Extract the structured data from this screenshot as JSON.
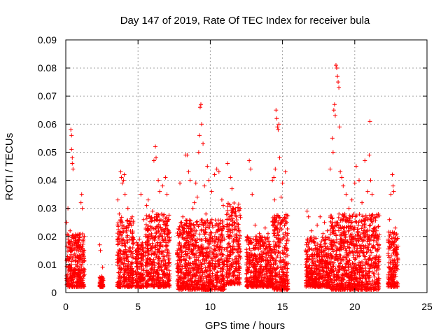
{
  "chart_data": {
    "type": "scatter",
    "title": "Day 147 of 2019, Rate Of TEC Index for receiver bula",
    "xlabel": "GPS time / hours",
    "ylabel": "ROTI / TECUs",
    "xlim": [
      0,
      25
    ],
    "ylim": [
      0,
      0.09
    ],
    "x_ticks": [
      "0",
      "5",
      "10",
      "15",
      "20",
      "25"
    ],
    "y_ticks": [
      "0",
      "0.01",
      "0.02",
      "0.03",
      "0.04",
      "0.05",
      "0.06",
      "0.07",
      "0.08",
      "0.09"
    ],
    "grid": true,
    "marker": "+",
    "color": "#ff0000",
    "series": [
      {
        "points": [
          [
            0.05,
            0.025
          ],
          [
            0.1,
            0.012
          ],
          [
            0.15,
            0.03
          ],
          [
            0.2,
            0.018
          ],
          [
            0.25,
            0.008
          ],
          [
            0.3,
            0.022
          ],
          [
            0.35,
            0.058
          ],
          [
            0.4,
            0.056
          ],
          [
            0.4,
            0.051
          ],
          [
            0.45,
            0.048
          ],
          [
            0.45,
            0.046
          ],
          [
            0.5,
            0.044
          ],
          [
            0.55,
            0.013
          ],
          [
            0.6,
            0.02
          ],
          [
            0.7,
            0.01
          ],
          [
            0.8,
            0.016
          ],
          [
            0.9,
            0.008
          ],
          [
            1.0,
            0.012
          ],
          [
            1.05,
            0.032
          ],
          [
            1.1,
            0.035
          ],
          [
            1.15,
            0.03
          ],
          [
            1.2,
            0.018
          ],
          [
            1.25,
            0.006
          ],
          [
            2.35,
            0.017
          ],
          [
            2.4,
            0.015
          ],
          [
            2.45,
            0.005
          ],
          [
            2.5,
            0.003
          ],
          [
            2.55,
            0.009
          ],
          [
            3.6,
            0.033
          ],
          [
            3.7,
            0.028
          ],
          [
            3.8,
            0.043
          ],
          [
            3.85,
            0.041
          ],
          [
            3.9,
            0.039
          ],
          [
            4.0,
            0.04
          ],
          [
            4.05,
            0.042
          ],
          [
            4.1,
            0.035
          ],
          [
            4.2,
            0.022
          ],
          [
            4.3,
            0.03
          ],
          [
            4.4,
            0.016
          ],
          [
            4.6,
            0.027
          ],
          [
            4.9,
            0.015
          ],
          [
            5.1,
            0.019
          ],
          [
            5.2,
            0.035
          ],
          [
            5.4,
            0.026
          ],
          [
            5.6,
            0.031
          ],
          [
            5.7,
            0.033
          ],
          [
            5.9,
            0.02
          ],
          [
            6.0,
            0.029
          ],
          [
            6.1,
            0.047
          ],
          [
            6.2,
            0.052
          ],
          [
            6.25,
            0.048
          ],
          [
            6.4,
            0.04
          ],
          [
            6.5,
            0.036
          ],
          [
            6.7,
            0.038
          ],
          [
            6.9,
            0.041
          ],
          [
            7.0,
            0.035
          ],
          [
            7.1,
            0.022
          ],
          [
            7.9,
            0.039
          ],
          [
            8.1,
            0.027
          ],
          [
            8.3,
            0.049
          ],
          [
            8.4,
            0.049
          ],
          [
            8.5,
            0.043
          ],
          [
            8.6,
            0.04
          ],
          [
            8.8,
            0.03
          ],
          [
            8.9,
            0.032
          ],
          [
            9.0,
            0.039
          ],
          [
            9.1,
            0.034
          ],
          [
            9.2,
            0.05
          ],
          [
            9.25,
            0.056
          ],
          [
            9.3,
            0.066
          ],
          [
            9.35,
            0.067
          ],
          [
            9.4,
            0.06
          ],
          [
            9.5,
            0.053
          ],
          [
            9.6,
            0.038
          ],
          [
            9.7,
            0.028
          ],
          [
            9.8,
            0.045
          ],
          [
            9.9,
            0.04
          ],
          [
            10.1,
            0.036
          ],
          [
            10.3,
            0.042
          ],
          [
            10.45,
            0.044
          ],
          [
            10.6,
            0.043
          ],
          [
            10.8,
            0.033
          ],
          [
            10.9,
            0.031
          ],
          [
            11.2,
            0.046
          ],
          [
            11.4,
            0.041
          ],
          [
            11.5,
            0.037
          ],
          [
            11.6,
            0.03
          ],
          [
            11.8,
            0.027
          ],
          [
            12.0,
            0.022
          ],
          [
            12.7,
            0.047
          ],
          [
            12.8,
            0.044
          ],
          [
            12.9,
            0.035
          ],
          [
            13.1,
            0.024
          ],
          [
            13.4,
            0.021
          ],
          [
            13.6,
            0.018
          ],
          [
            13.8,
            0.023
          ],
          [
            14.0,
            0.021
          ],
          [
            14.3,
            0.04
          ],
          [
            14.4,
            0.041
          ],
          [
            14.45,
            0.033
          ],
          [
            14.5,
            0.044
          ],
          [
            14.55,
            0.065
          ],
          [
            14.6,
            0.062
          ],
          [
            14.65,
            0.059
          ],
          [
            14.7,
            0.058
          ],
          [
            14.75,
            0.06
          ],
          [
            14.8,
            0.048
          ],
          [
            14.9,
            0.034
          ],
          [
            15.0,
            0.039
          ],
          [
            15.2,
            0.043
          ],
          [
            15.3,
            0.025
          ],
          [
            16.7,
            0.029
          ],
          [
            16.8,
            0.027
          ],
          [
            17.0,
            0.022
          ],
          [
            17.2,
            0.018
          ],
          [
            17.4,
            0.024
          ],
          [
            17.6,
            0.027
          ],
          [
            17.8,
            0.021
          ],
          [
            17.9,
            0.025
          ],
          [
            18.1,
            0.022
          ],
          [
            18.3,
            0.044
          ],
          [
            18.45,
            0.055
          ],
          [
            18.5,
            0.05
          ],
          [
            18.55,
            0.065
          ],
          [
            18.6,
            0.067
          ],
          [
            18.65,
            0.063
          ],
          [
            18.7,
            0.081
          ],
          [
            18.75,
            0.08
          ],
          [
            18.8,
            0.077
          ],
          [
            18.85,
            0.075
          ],
          [
            18.9,
            0.073
          ],
          [
            18.95,
            0.059
          ],
          [
            19.0,
            0.043
          ],
          [
            19.1,
            0.041
          ],
          [
            19.2,
            0.038
          ],
          [
            19.4,
            0.035
          ],
          [
            19.6,
            0.03
          ],
          [
            19.8,
            0.033
          ],
          [
            20.0,
            0.039
          ],
          [
            20.1,
            0.045
          ],
          [
            20.3,
            0.04
          ],
          [
            20.5,
            0.032
          ],
          [
            20.7,
            0.047
          ],
          [
            20.9,
            0.036
          ],
          [
            21.0,
            0.049
          ],
          [
            21.05,
            0.061
          ],
          [
            21.1,
            0.04
          ],
          [
            21.2,
            0.035
          ],
          [
            21.4,
            0.023
          ],
          [
            21.5,
            0.018
          ],
          [
            22.4,
            0.026
          ],
          [
            22.5,
            0.035
          ],
          [
            22.6,
            0.042
          ],
          [
            22.65,
            0.038
          ],
          [
            22.7,
            0.036
          ],
          [
            22.8,
            0.023
          ],
          [
            22.9,
            0.014
          ]
        ]
      }
    ],
    "dense_bands": [
      {
        "x": [
          0.05,
          1.3
        ],
        "y": [
          0.002,
          0.021
        ]
      },
      {
        "x": [
          2.35,
          2.6
        ],
        "y": [
          0.002,
          0.006
        ]
      },
      {
        "x": [
          3.55,
          4.7
        ],
        "y": [
          0.002,
          0.027
        ]
      },
      {
        "x": [
          4.8,
          5.4
        ],
        "y": [
          0.002,
          0.018
        ]
      },
      {
        "x": [
          5.5,
          7.2
        ],
        "y": [
          0.002,
          0.028
        ]
      },
      {
        "x": [
          7.7,
          11.0
        ],
        "y": [
          0.001,
          0.026
        ]
      },
      {
        "x": [
          11.1,
          12.1
        ],
        "y": [
          0.003,
          0.032
        ]
      },
      {
        "x": [
          12.5,
          14.3
        ],
        "y": [
          0.002,
          0.02
        ]
      },
      {
        "x": [
          14.3,
          15.4
        ],
        "y": [
          0.001,
          0.028
        ]
      },
      {
        "x": [
          16.6,
          18.3
        ],
        "y": [
          0.002,
          0.02
        ]
      },
      {
        "x": [
          18.3,
          21.7
        ],
        "y": [
          0.001,
          0.028
        ]
      },
      {
        "x": [
          22.3,
          23.0
        ],
        "y": [
          0.002,
          0.022
        ]
      }
    ]
  }
}
